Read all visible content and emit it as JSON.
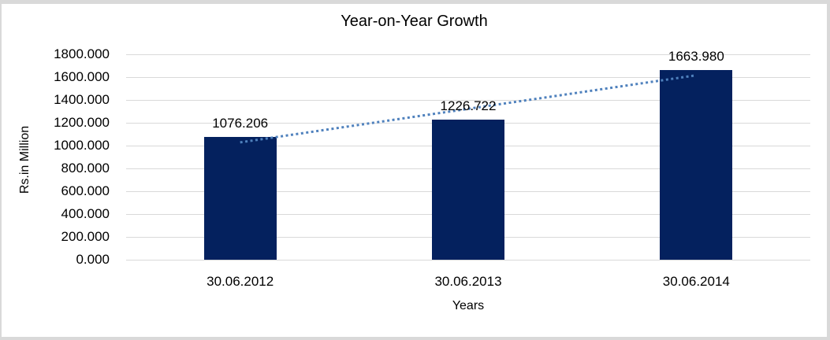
{
  "chart_data": {
    "type": "bar",
    "title": "Year-on-Year Growth",
    "xlabel": "Years",
    "ylabel": "Rs.in Million",
    "categories": [
      "30.06.2012",
      "30.06.2013",
      "30.06.2014"
    ],
    "values": [
      1076.206,
      1226.722,
      1663.98
    ],
    "data_labels": [
      "1076.206",
      "1226.722",
      "1663.980"
    ],
    "ylim": [
      0,
      1800
    ],
    "ytick_step": 200,
    "ytick_labels": [
      "1800.000",
      "1600.000",
      "1400.000",
      "1200.000",
      "1000.000",
      "800.000",
      "600.000",
      "400.000",
      "200.000",
      "0.000"
    ],
    "grid": true,
    "legend": "none",
    "bar_color": "#04215e",
    "gridline_color": "#d9d9d9",
    "text_color": "#000000",
    "trendline": {
      "type": "linear",
      "style": "dotted",
      "color": "#4f81bd",
      "start_value": 1028.4,
      "end_value": 1616.2
    }
  }
}
